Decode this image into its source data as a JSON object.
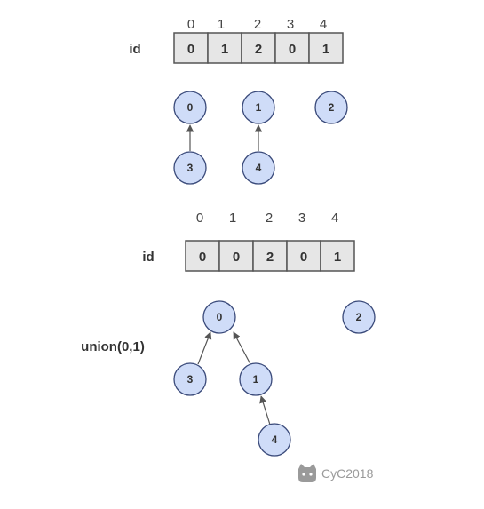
{
  "colors": {
    "cell_fill": "#e6e6e6",
    "cell_stroke": "#555555",
    "node_fill": "#cfdcf8",
    "node_stroke": "#3a4a7a",
    "edge": "#555555",
    "watermark": "#9a9a9a"
  },
  "watermark": {
    "icon": "github-cat-icon",
    "text": "CyC2018"
  },
  "panels": [
    {
      "array": {
        "label": "id",
        "indices": [
          "0",
          "1",
          "2",
          "3",
          "4"
        ],
        "values": [
          "0",
          "1",
          "2",
          "0",
          "1"
        ]
      },
      "operation": "",
      "nodes": [
        "0",
        "1",
        "2",
        "3",
        "4"
      ],
      "edges": [
        {
          "from": "3",
          "to": "0"
        },
        {
          "from": "4",
          "to": "1"
        }
      ]
    },
    {
      "array": {
        "label": "id",
        "indices": [
          "0",
          "1",
          "2",
          "3",
          "4"
        ],
        "values": [
          "0",
          "0",
          "2",
          "0",
          "1"
        ]
      },
      "operation": "union(0,1)",
      "nodes": [
        "0",
        "1",
        "2",
        "3",
        "4"
      ],
      "edges": [
        {
          "from": "3",
          "to": "0"
        },
        {
          "from": "1",
          "to": "0"
        },
        {
          "from": "4",
          "to": "1"
        }
      ]
    }
  ]
}
